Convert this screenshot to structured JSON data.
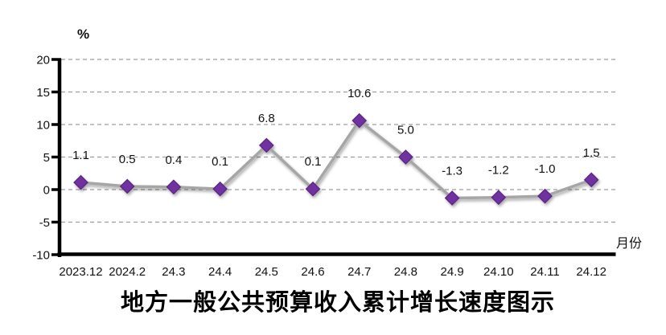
{
  "chart_data": {
    "type": "line",
    "title": "地方一般公共预算收入累计增长速度图示",
    "y_axis_unit": "%",
    "x_axis_unit": "月份",
    "categories": [
      "2023.12",
      "2024.2",
      "24.3",
      "24.4",
      "24.5",
      "24.6",
      "24.7",
      "24.8",
      "24.9",
      "24.10",
      "24.11",
      "24.12"
    ],
    "values": [
      1.1,
      0.5,
      0.4,
      0.1,
      6.8,
      0.1,
      10.6,
      5.0,
      -1.3,
      -1.2,
      -1.0,
      1.5
    ],
    "data_labels": [
      "1.1",
      "0.5",
      "0.4",
      "0.1",
      "6.8",
      "0.1",
      "10.6",
      "5.0",
      "-1.3",
      "-1.2",
      "-1.0",
      "1.5"
    ],
    "y_ticks": [
      20,
      15,
      10,
      5,
      0,
      -5,
      -10
    ],
    "ylim": [
      -10,
      20
    ],
    "grid": "horizontal-dashed",
    "legend": "none",
    "colors": {
      "line": "#a6a6a6",
      "marker_fill": "#7030a0",
      "marker_stroke": "#58257f",
      "gridline": "#9d9d9d",
      "axis": "#000000",
      "text": "#111111"
    },
    "marker_shape": "diamond"
  }
}
